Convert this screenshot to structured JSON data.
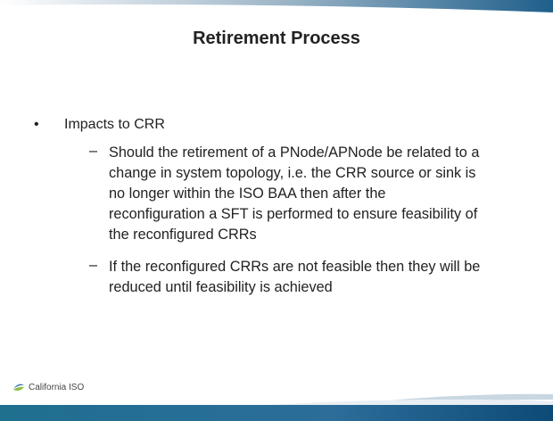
{
  "slide": {
    "title": "Retirement Process",
    "bullet": "Impacts to CRR",
    "sub_bullets": [
      {
        "lines": [
          "Should the retirement of a PNode/APNode be related to a",
          "change in system topology, i.e. the CRR source or sink is",
          "no longer within the ISO BAA then after the",
          "reconfiguration a SFT is performed to ensure feasibility of",
          "the reconfigured CRRs"
        ]
      },
      {
        "lines": [
          "If the reconfigured CRRs are not feasible then they will be",
          "reduced until feasibility is achieved"
        ]
      }
    ],
    "footer_logo": "California ISO"
  }
}
